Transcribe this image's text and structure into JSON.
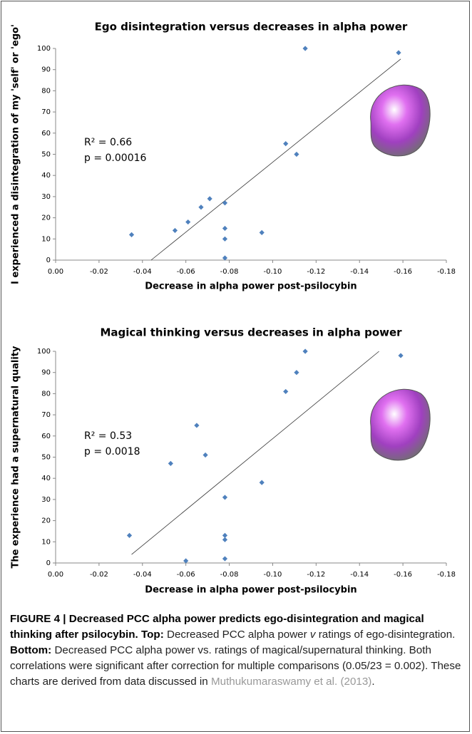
{
  "chart_data": [
    {
      "type": "scatter",
      "title": "Ego disintegration versus decreases in alpha power",
      "x_label": "Decrease in alpha power post-psilocybin",
      "y_label": "I experienced a disintegration of my 'self' or 'ego'",
      "series": [
        {
          "color": "#4f81bd",
          "x": [
            -0.035,
            -0.055,
            -0.061,
            -0.067,
            -0.071,
            -0.078,
            -0.078,
            -0.078,
            -0.078,
            -0.095,
            -0.106,
            -0.111,
            -0.115,
            -0.158
          ],
          "values": [
            12,
            14,
            18,
            25,
            29,
            27,
            15,
            10,
            1,
            13,
            55,
            50,
            100,
            98
          ]
        }
      ],
      "trendline": {
        "x": [
          -0.044,
          -0.159
        ],
        "y": [
          0,
          95
        ]
      },
      "annotations": [
        "R² = 0.66",
        "p = 0.00016"
      ],
      "xlim": [
        0,
        -0.18
      ],
      "xticks": [
        {
          "value": 0,
          "label": "0.00"
        },
        -0.02,
        -0.04,
        -0.06,
        -0.08,
        {
          "value": -0.1,
          "label": "-0.10"
        },
        -0.12,
        -0.14,
        -0.16,
        -0.18
      ],
      "ylim": [
        0,
        100
      ],
      "yticks": [
        0,
        10,
        20,
        30,
        40,
        50,
        60,
        70,
        80,
        90,
        100
      ]
    },
    {
      "type": "scatter",
      "title": "Magical thinking versus decreases in alpha power",
      "x_label": "Decrease in alpha power post-psilocybin",
      "y_label": "The experience had a supernatural quality",
      "series": [
        {
          "color": "#4f81bd",
          "x": [
            -0.034,
            -0.053,
            -0.06,
            -0.065,
            -0.069,
            -0.078,
            -0.078,
            -0.078,
            -0.078,
            -0.095,
            -0.106,
            -0.111,
            -0.115,
            -0.159
          ],
          "values": [
            13,
            47,
            1,
            65,
            51,
            31,
            13,
            11,
            2,
            38,
            81,
            90,
            100,
            98
          ]
        }
      ],
      "trendline": {
        "x": [
          -0.035,
          -0.149
        ],
        "y": [
          4,
          100
        ]
      },
      "annotations": [
        "R² = 0.53",
        "p = 0.0018"
      ],
      "xlim": [
        0,
        -0.18
      ],
      "xticks": [
        {
          "value": 0,
          "label": "0.00"
        },
        -0.02,
        -0.04,
        -0.06,
        -0.08,
        {
          "value": -0.1,
          "label": "-0.10"
        },
        -0.12,
        -0.14,
        -0.16,
        -0.18
      ],
      "ylim": [
        0,
        100
      ],
      "yticks": [
        0,
        10,
        20,
        30,
        40,
        50,
        60,
        70,
        80,
        90,
        100
      ]
    }
  ],
  "caption": {
    "heading": "FIGURE 4 | Decreased PCC alpha power predicts ego-disintegration and magical thinking after psilocybin.",
    "top_label": "Top:",
    "top_text_1": "Decreased PCC alpha power",
    "top_italic": "v",
    "top_text_2": "ratings of ego-disintegration.",
    "bottom_label": "Bottom:",
    "bottom_text": "Decreased PCC alpha power vs. ratings of magical/supernatural thinking. Both correlations were significant after correction for multiple comparisons (0.05/23 = 0.002). These charts are derived from data discussed in",
    "reference": "Muthukumaraswamy et al. (2013)",
    "end": "."
  }
}
